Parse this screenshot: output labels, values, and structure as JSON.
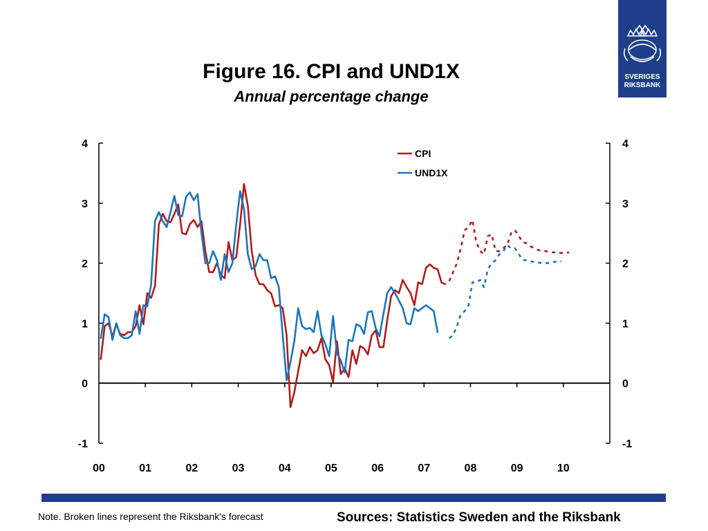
{
  "chart_data": {
    "type": "line",
    "title": "Figure 16. CPI and UND1X",
    "subtitle": "Annual percentage change",
    "xlabel": "",
    "ylabel": "",
    "x_ticks": [
      "00",
      "01",
      "02",
      "03",
      "04",
      "05",
      "06",
      "07",
      "08",
      "09",
      "10"
    ],
    "y_ticks": [
      "-1",
      "0",
      "1",
      "2",
      "3",
      "4"
    ],
    "ylim": [
      -1,
      4
    ],
    "xlim": [
      "2000-01",
      "2010-12"
    ],
    "grid": false,
    "legend": {
      "position": "top-right"
    },
    "series": [
      {
        "name": "CPI",
        "color": "#b31a1a",
        "start": "2000-01",
        "values": [
          0.4,
          0.95,
          1.0,
          0.78,
          0.98,
          0.82,
          0.8,
          0.85,
          0.85,
          0.95,
          1.3,
          0.98,
          1.5,
          1.42,
          1.62,
          2.65,
          2.82,
          2.7,
          2.68,
          2.82,
          2.98,
          2.5,
          2.48,
          2.65,
          2.72,
          2.6,
          2.7,
          2.2,
          1.85,
          1.85,
          2.0,
          1.8,
          1.75,
          2.35,
          2.05,
          2.1,
          2.65,
          3.32,
          2.95,
          2.2,
          1.8,
          1.65,
          1.65,
          1.55,
          1.5,
          1.28,
          1.3,
          1.25,
          0.8,
          -0.4,
          -0.15,
          0.2,
          0.55,
          0.45,
          0.6,
          0.5,
          0.55,
          0.75,
          0.4,
          0.3,
          0.02,
          0.7,
          0.15,
          0.25,
          0.1,
          0.55,
          0.32,
          0.62,
          0.58,
          0.48,
          0.8,
          0.88,
          0.6,
          0.6,
          1.05,
          1.45,
          1.55,
          1.5,
          1.72,
          1.6,
          1.5,
          1.3,
          1.68,
          1.65,
          1.92,
          1.98,
          1.92,
          1.9,
          1.68,
          1.65
        ]
      },
      {
        "name": "UND1X",
        "color": "#1a74bc",
        "start": "2000-01",
        "values": [
          0.75,
          1.15,
          1.1,
          0.72,
          1.0,
          0.8,
          0.75,
          0.75,
          0.8,
          1.2,
          0.82,
          1.3,
          1.28,
          1.65,
          2.7,
          2.85,
          2.7,
          2.6,
          2.85,
          3.12,
          2.8,
          2.78,
          3.1,
          3.18,
          3.05,
          3.15,
          2.5,
          2.0,
          2.0,
          2.2,
          2.05,
          1.72,
          2.15,
          1.85,
          2.0,
          2.65,
          3.2,
          2.9,
          2.15,
          1.9,
          1.95,
          2.15,
          2.05,
          2.05,
          1.75,
          1.78,
          1.6,
          0.8,
          0.05,
          0.35,
          0.7,
          1.25,
          0.95,
          0.9,
          0.92,
          0.85,
          1.2,
          0.8,
          0.65,
          0.45,
          1.12,
          0.5,
          0.38,
          0.18,
          0.72,
          0.7,
          0.98,
          0.95,
          0.82,
          1.18,
          1.2,
          0.92,
          0.78,
          1.15,
          1.5,
          1.6,
          1.5,
          1.38,
          1.25,
          1.0,
          0.98,
          1.25,
          1.2,
          1.25,
          1.3,
          1.25,
          1.2,
          0.85
        ]
      },
      {
        "name": "CPI forecast",
        "color": "#b31a1a",
        "dashed": true,
        "start": "2007-07",
        "values": [
          1.7,
          1.85,
          2.0,
          2.25,
          2.55,
          2.6,
          2.72,
          2.35,
          2.2,
          2.15,
          2.45,
          2.48,
          2.2,
          2.2,
          2.25,
          2.3,
          2.5,
          2.55,
          2.45,
          2.35,
          2.33,
          2.28,
          2.25,
          2.22,
          2.2,
          2.2,
          2.18,
          2.18,
          2.17,
          2.17,
          2.17,
          2.18
        ]
      },
      {
        "name": "UND1X forecast",
        "color": "#1a74bc",
        "dashed": true,
        "start": "2007-07",
        "values": [
          0.75,
          0.8,
          0.95,
          1.15,
          1.2,
          1.3,
          1.68,
          1.68,
          1.72,
          1.6,
          1.9,
          2.0,
          2.05,
          2.15,
          2.2,
          2.3,
          2.25,
          2.25,
          2.15,
          2.05,
          2.05,
          2.03,
          2.02,
          2.01,
          2.0,
          2.0,
          2.0,
          2.02,
          2.03,
          2.03
        ]
      }
    ]
  },
  "logo": {
    "text_line1": "SVERIGES",
    "text_line2": "RIKSBANK"
  },
  "footer": {
    "note": "Note. Broken lines represent the Riksbank's forecast",
    "sources": "Sources: Statistics Sweden and the Riksbank"
  }
}
